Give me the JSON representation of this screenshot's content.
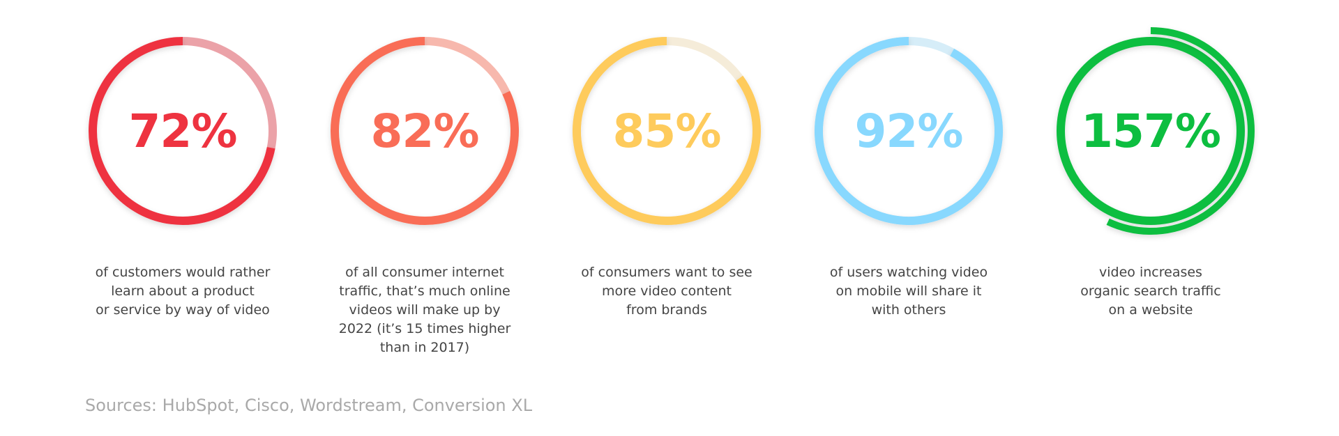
{
  "chart_data": {
    "type": "donut-stats",
    "title": "",
    "items": [
      {
        "value": 72,
        "label": "72%",
        "caption": "of customers would rather\nlearn about a product\nor service by way of video",
        "color": "#ee3340",
        "faded_color": "#eba2a8"
      },
      {
        "value": 82,
        "label": "82%",
        "caption": "of all consumer internet\ntraffic, that’s much online\nvideos will make up by\n2022 (it’s 15 times higher\nthan in 2017)",
        "color": "#f96d57",
        "faded_color": "#f7b8ad"
      },
      {
        "value": 85,
        "label": "85%",
        "caption": "of consumers want to see\nmore video content\nfrom brands",
        "color": "#fecb5c",
        "faded_color": "#f5ecd9"
      },
      {
        "value": 92,
        "label": "92%",
        "caption": "of users watching video\non mobile will share it\nwith others",
        "color": "#88d8fe",
        "faded_color": "#d6edf8"
      },
      {
        "value": 157,
        "label": "157%",
        "caption": "video increases\norganic search traffic\non a website",
        "color": "#0dbe40",
        "faded_color": "#0dbe40"
      }
    ]
  },
  "sources": "Sources: HubSpot, Cisco, Wordstream, Conversion XL"
}
